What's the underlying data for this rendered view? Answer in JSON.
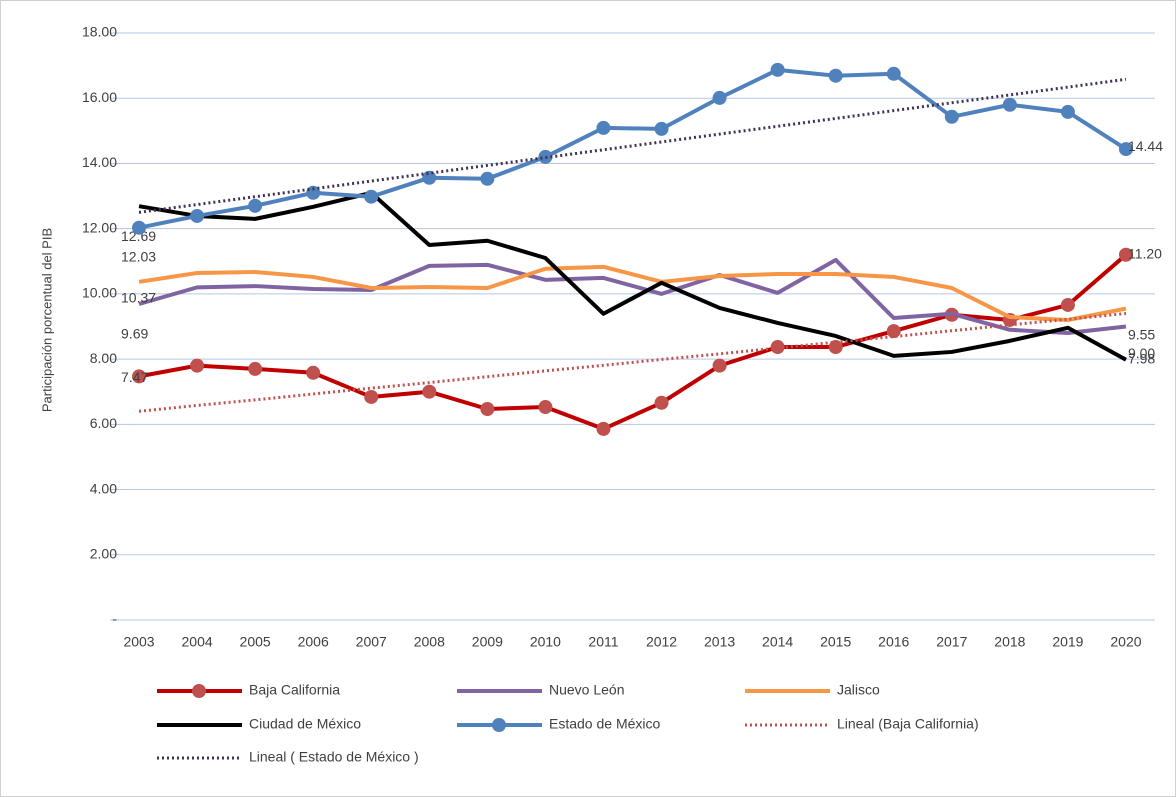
{
  "chart_data": {
    "type": "line",
    "y_label": "Participación porcentual del PIB",
    "categories": [
      "2003",
      "2004",
      "2005",
      "2006",
      "2007",
      "2008",
      "2009",
      "2010",
      "2011",
      "2012",
      "2013",
      "2014",
      "2015",
      "2016",
      "2017",
      "2018",
      "2019",
      "2020"
    ],
    "ylim": [
      0,
      18
    ],
    "yticks": [
      {
        "value": 0,
        "label": "-"
      },
      {
        "value": 2,
        "label": "2.00"
      },
      {
        "value": 4,
        "label": "4.00"
      },
      {
        "value": 6,
        "label": "6.00"
      },
      {
        "value": 8,
        "label": "8.00"
      },
      {
        "value": 10,
        "label": "10.00"
      },
      {
        "value": 12,
        "label": "12.00"
      },
      {
        "value": 14,
        "label": "14.00"
      },
      {
        "value": 16,
        "label": "16.00"
      },
      {
        "value": 18,
        "label": "18.00"
      }
    ],
    "grid": true,
    "series": [
      {
        "name": "Baja California",
        "color": "#c00000",
        "marker_color": "#c0504d",
        "markers": true,
        "values": [
          7.47,
          7.8,
          7.7,
          7.58,
          6.84,
          7.0,
          6.47,
          6.53,
          5.86,
          6.66,
          7.8,
          8.37,
          8.37,
          8.86,
          9.36,
          9.2,
          9.66,
          11.2
        ],
        "value_labels": [
          "7.47",
          null,
          null,
          null,
          null,
          null,
          null,
          null,
          null,
          null,
          null,
          null,
          null,
          null,
          null,
          null,
          null,
          "11.20"
        ]
      },
      {
        "name": "Nuevo León",
        "color": "#8064a2",
        "markers": false,
        "values": [
          9.69,
          10.2,
          10.24,
          10.15,
          10.12,
          10.86,
          10.89,
          10.43,
          10.49,
          10.0,
          10.58,
          10.03,
          11.04,
          9.26,
          9.39,
          8.9,
          8.8,
          9.0
        ],
        "value_labels": [
          "9.69",
          null,
          null,
          null,
          null,
          null,
          null,
          null,
          null,
          null,
          null,
          null,
          null,
          null,
          null,
          null,
          null,
          "9.00"
        ]
      },
      {
        "name": "Jalisco",
        "color": "#f79646",
        "markers": false,
        "values": [
          10.37,
          10.64,
          10.67,
          10.52,
          10.18,
          10.21,
          10.18,
          10.77,
          10.83,
          10.37,
          10.55,
          10.61,
          10.61,
          10.52,
          10.18,
          9.29,
          9.2,
          9.55
        ],
        "value_labels": [
          "10.37",
          null,
          null,
          null,
          null,
          null,
          null,
          null,
          null,
          null,
          null,
          null,
          null,
          null,
          null,
          null,
          null,
          "9.55"
        ]
      },
      {
        "name": "Ciudad de México",
        "color": "#000000",
        "markers": false,
        "values": [
          12.69,
          12.39,
          12.3,
          12.67,
          13.1,
          11.5,
          11.63,
          11.1,
          9.39,
          10.34,
          9.57,
          9.11,
          8.71,
          8.1,
          8.22,
          8.56,
          8.96,
          7.98
        ],
        "value_labels": [
          "12.69",
          null,
          null,
          null,
          null,
          null,
          null,
          null,
          null,
          null,
          null,
          null,
          null,
          null,
          null,
          null,
          null,
          "7.98"
        ]
      },
      {
        "name": "Estado de México",
        "color": "#4f81bd",
        "marker_color": "#4f81bd",
        "markers": true,
        "values": [
          12.03,
          12.39,
          12.7,
          13.1,
          12.98,
          13.56,
          13.53,
          14.2,
          15.09,
          15.06,
          16.01,
          16.87,
          16.69,
          16.75,
          15.43,
          15.8,
          15.58,
          14.44
        ],
        "value_labels": [
          "12.03",
          null,
          null,
          null,
          null,
          null,
          null,
          null,
          null,
          null,
          null,
          null,
          null,
          null,
          null,
          null,
          null,
          "14.44"
        ]
      },
      {
        "name": "Lineal (Baja California)",
        "color": "#c0504d",
        "dotted": true,
        "values": [
          6.4,
          6.58,
          6.75,
          6.93,
          7.11,
          7.28,
          7.46,
          7.64,
          7.81,
          7.99,
          8.16,
          8.34,
          8.52,
          8.69,
          8.87,
          9.05,
          9.22,
          9.4
        ]
      },
      {
        "name": "Lineal ( Estado de México )",
        "color": "#403152",
        "dotted": true,
        "values": [
          12.5,
          12.74,
          12.98,
          13.22,
          13.46,
          13.7,
          13.94,
          14.18,
          14.42,
          14.66,
          14.9,
          15.14,
          15.38,
          15.62,
          15.86,
          16.1,
          16.34,
          16.58
        ]
      }
    ]
  }
}
